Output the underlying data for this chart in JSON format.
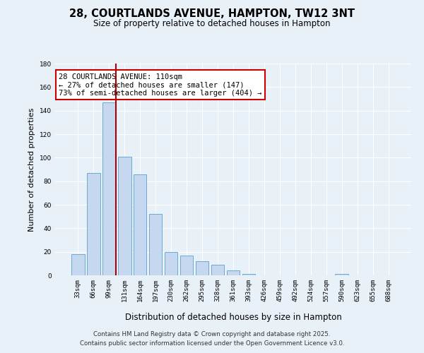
{
  "title": "28, COURTLANDS AVENUE, HAMPTON, TW12 3NT",
  "subtitle": "Size of property relative to detached houses in Hampton",
  "xlabel": "Distribution of detached houses by size in Hampton",
  "ylabel": "Number of detached properties",
  "categories": [
    "33sqm",
    "66sqm",
    "99sqm",
    "131sqm",
    "164sqm",
    "197sqm",
    "230sqm",
    "262sqm",
    "295sqm",
    "328sqm",
    "361sqm",
    "393sqm",
    "426sqm",
    "459sqm",
    "492sqm",
    "524sqm",
    "557sqm",
    "590sqm",
    "623sqm",
    "655sqm",
    "688sqm"
  ],
  "values": [
    18,
    87,
    147,
    101,
    86,
    52,
    20,
    17,
    12,
    9,
    4,
    1,
    0,
    0,
    0,
    0,
    0,
    1,
    0,
    0,
    0
  ],
  "bar_color": "#c5d8f0",
  "bar_edge_color": "#6aaad4",
  "background_color": "#e8f0f8",
  "grid_color": "#ffffff",
  "red_line_index": 2,
  "annotation_text": "28 COURTLANDS AVENUE: 110sqm\n← 27% of detached houses are smaller (147)\n73% of semi-detached houses are larger (404) →",
  "annotation_box_color": "#ffffff",
  "annotation_box_edge": "#cc0000",
  "ylim": [
    0,
    180
  ],
  "yticks": [
    0,
    20,
    40,
    60,
    80,
    100,
    120,
    140,
    160,
    180
  ],
  "footer1": "Contains HM Land Registry data © Crown copyright and database right 2025.",
  "footer2": "Contains public sector information licensed under the Open Government Licence v3.0."
}
